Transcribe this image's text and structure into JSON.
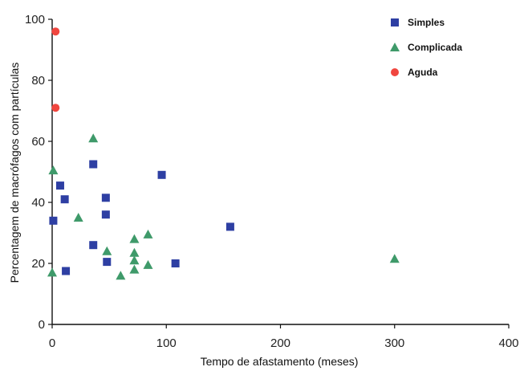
{
  "chart_data": {
    "type": "scatter",
    "xlabel": "Tempo de afastamento (meses)",
    "ylabel": "Percentagem de macrófagos com partículas",
    "xlim": [
      0,
      400
    ],
    "ylim": [
      0,
      100
    ],
    "x_ticks": [
      0,
      100,
      200,
      300,
      400
    ],
    "y_ticks": [
      0,
      20,
      40,
      60,
      80,
      100
    ],
    "grid": false,
    "legend_position": "top-right",
    "series": [
      {
        "name": "Simples",
        "marker": "square",
        "color": "#2e3fa3",
        "points": [
          [
            1,
            34
          ],
          [
            7,
            45.5
          ],
          [
            11,
            41
          ],
          [
            12,
            17.5
          ],
          [
            36,
            52.5
          ],
          [
            36,
            26
          ],
          [
            47,
            41.5
          ],
          [
            47,
            36
          ],
          [
            48,
            20.5
          ],
          [
            96,
            49
          ],
          [
            108,
            20
          ],
          [
            156,
            32
          ]
        ]
      },
      {
        "name": "Complicada",
        "marker": "triangle",
        "color": "#3f9a6a",
        "points": [
          [
            0,
            17
          ],
          [
            1,
            50.5
          ],
          [
            23,
            35
          ],
          [
            36,
            61
          ],
          [
            48,
            24
          ],
          [
            60,
            16
          ],
          [
            72,
            28
          ],
          [
            72,
            23.5
          ],
          [
            72,
            21
          ],
          [
            72,
            18
          ],
          [
            84,
            29.5
          ],
          [
            84,
            19.5
          ],
          [
            300,
            21.5
          ]
        ]
      },
      {
        "name": "Aguda",
        "marker": "circle",
        "color": "#f0463f",
        "points": [
          [
            3,
            96
          ],
          [
            3,
            71
          ]
        ]
      }
    ]
  }
}
